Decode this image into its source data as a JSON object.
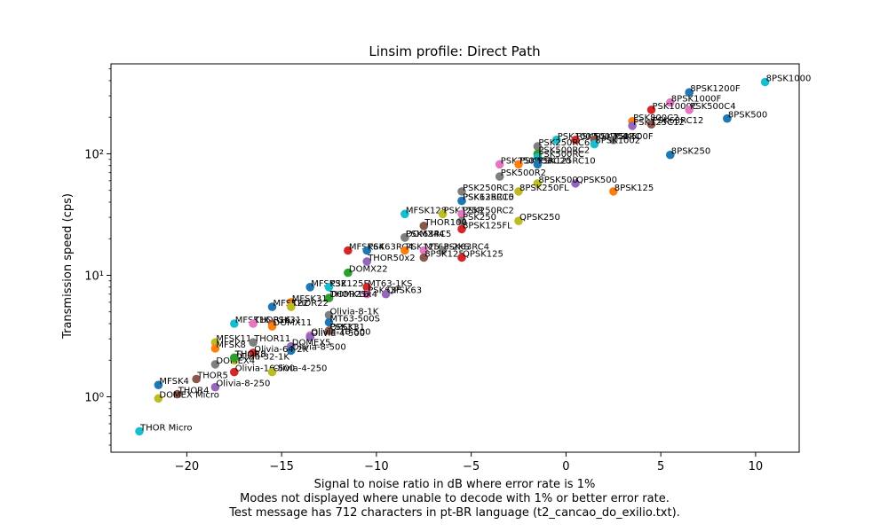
{
  "chart_data": {
    "type": "scatter",
    "title": "Linsim profile: Direct Path",
    "xlabel": "Signal to noise ratio in dB where error rate is 1%",
    "ylabel": "Transmission speed (cps)",
    "caption": [
      "Signal to noise ratio in dB where error rate is 1%",
      "Modes not displayed where unable to decode with 1% or better error rate.",
      "Test message has 712 characters in pt-BR language (t2_cancao_do_exilio.txt)."
    ],
    "xscale": "linear",
    "yscale": "log",
    "xlim": [
      -24,
      12.3
    ],
    "ylim": [
      0.35,
      550
    ],
    "xticks": [
      -20,
      -15,
      -10,
      -5,
      0,
      5,
      10
    ],
    "xtick_labels": [
      "−20",
      "−15",
      "−10",
      "−5",
      "0",
      "5",
      "10"
    ],
    "yticks": [
      1,
      10,
      100
    ],
    "ytick_labels": [
      "10⁰",
      "10¹",
      "10²"
    ],
    "grid": false,
    "points": [
      {
        "label": "8PSK1000",
        "x": 10.5,
        "y": 390,
        "color": "#17becf"
      },
      {
        "label": "8PSK1200F",
        "x": 6.5,
        "y": 320,
        "color": "#1f77b4"
      },
      {
        "label": "8PSK1000F",
        "x": 5.5,
        "y": 265,
        "color": "#e377c2"
      },
      {
        "label": "PSK1000C",
        "x": 4.5,
        "y": 230,
        "color": "#d62728"
      },
      {
        "label": "PSK500C4",
        "x": 6.5,
        "y": 230,
        "color": "#e377c2"
      },
      {
        "label": "8PSK500",
        "x": 8.5,
        "y": 195,
        "color": "#1f77b4"
      },
      {
        "label": "PSK800C2",
        "x": 3.5,
        "y": 185,
        "color": "#ff7f0e"
      },
      {
        "label": "PSK63RC12",
        "x": 4.5,
        "y": 175,
        "color": "#8c564b"
      },
      {
        "label": "PSK125C12",
        "x": 3.5,
        "y": 170,
        "color": "#9467bd"
      },
      {
        "label": "PSK1000",
        "x": -0.5,
        "y": 130,
        "color": "#17becf"
      },
      {
        "label": "PSK500RC4",
        "x": 0.5,
        "y": 130,
        "color": "#d62728"
      },
      {
        "label": "PSK250RC",
        "x": 1.5,
        "y": 130,
        "color": "#8c564b"
      },
      {
        "label": "PSK500F",
        "x": 2.5,
        "y": 130,
        "color": "#7f7f7f"
      },
      {
        "label": "8PSK1002",
        "x": 1.5,
        "y": 120,
        "color": "#17becf"
      },
      {
        "label": "PSK250RC6",
        "x": -1.5,
        "y": 115,
        "color": "#7f7f7f"
      },
      {
        "label": "PSK500RC2",
        "x": -1.5,
        "y": 100,
        "color": "#2ca02c"
      },
      {
        "label": "8PSK250",
        "x": 5.5,
        "y": 98,
        "color": "#1f77b4"
      },
      {
        "label": "PSK500RC",
        "x": -1.5,
        "y": 93,
        "color": "#17becf"
      },
      {
        "label": "PSK250RC3",
        "x": -3.5,
        "y": 82,
        "color": "#e377c2"
      },
      {
        "label": "PSK63RC20",
        "x": -2.5,
        "y": 82,
        "color": "#ff7f0e"
      },
      {
        "label": "PSK125RC10",
        "x": -1.5,
        "y": 82,
        "color": "#1f77b4"
      },
      {
        "label": "PSK500R2",
        "x": -3.5,
        "y": 65,
        "color": "#7f7f7f"
      },
      {
        "label": "QPSK500",
        "x": 0.5,
        "y": 57,
        "color": "#9467bd"
      },
      {
        "label": "8PSK500",
        "x": -1.5,
        "y": 57,
        "color": "#bcbd22"
      },
      {
        "label": "8PSK125",
        "x": 2.5,
        "y": 49,
        "color": "#ff7f0e"
      },
      {
        "label": "PSK250RC3",
        "x": -5.5,
        "y": 49,
        "color": "#7f7f7f"
      },
      {
        "label": "8PSK250FL",
        "x": -2.5,
        "y": 49,
        "color": "#bcbd22"
      },
      {
        "label": "PSK125RC5",
        "x": -5.5,
        "y": 41,
        "color": "#17becf"
      },
      {
        "label": "PSK63RC10",
        "x": -5.5,
        "y": 41,
        "color": "#1f77b4"
      },
      {
        "label": "MFSK128",
        "x": -8.5,
        "y": 32,
        "color": "#17becf"
      },
      {
        "label": "PSK125R",
        "x": -6.5,
        "y": 32,
        "color": "#bcbd22"
      },
      {
        "label": "PSK250RC2",
        "x": -5.5,
        "y": 32,
        "color": "#e377c2"
      },
      {
        "label": "QPSK250",
        "x": -2.5,
        "y": 28,
        "color": "#bcbd22"
      },
      {
        "label": "PSK250",
        "x": -5.5,
        "y": 28,
        "color": "#7f7f7f"
      },
      {
        "label": "THOR100",
        "x": -7.5,
        "y": 25.5,
        "color": "#8c564b"
      },
      {
        "label": "8PSK125FL",
        "x": -5.5,
        "y": 24,
        "color": "#d62728"
      },
      {
        "label": "DOMX44",
        "x": -8.5,
        "y": 20.5,
        "color": "#2ca02c"
      },
      {
        "label": "PSK63RC5",
        "x": -8.5,
        "y": 20.5,
        "color": "#7f7f7f"
      },
      {
        "label": "MFSK64",
        "x": -11.5,
        "y": 16,
        "color": "#d62728"
      },
      {
        "label": "PSK63RC4",
        "x": -10.5,
        "y": 16,
        "color": "#1f77b4"
      },
      {
        "label": "PSK125",
        "x": -8.5,
        "y": 16,
        "color": "#ff7f0e"
      },
      {
        "label": "MT63-2KS",
        "x": -7.5,
        "y": 16,
        "color": "#e377c2"
      },
      {
        "label": "PSK63RC4",
        "x": -6.5,
        "y": 16,
        "color": "#7f7f7f"
      },
      {
        "label": "8PSK125",
        "x": -7.5,
        "y": 14,
        "color": "#8c564b"
      },
      {
        "label": "QPSK125",
        "x": -5.5,
        "y": 14,
        "color": "#d62728"
      },
      {
        "label": "THOR50x2",
        "x": -10.5,
        "y": 13,
        "color": "#9467bd"
      },
      {
        "label": "DOMX22",
        "x": -11.5,
        "y": 10.5,
        "color": "#2ca02c"
      },
      {
        "label": "MFSK32",
        "x": -13.5,
        "y": 8,
        "color": "#1f77b4"
      },
      {
        "label": "PSK125F",
        "x": -12.5,
        "y": 8,
        "color": "#17becf"
      },
      {
        "label": "MT63-1KS",
        "x": -10.5,
        "y": 8,
        "color": "#d62728"
      },
      {
        "label": "PSK63F",
        "x": -10.5,
        "y": 7,
        "color": "#e377c2"
      },
      {
        "label": "QPSK63",
        "x": -9.5,
        "y": 7,
        "color": "#9467bd"
      },
      {
        "label": "THOR25x4",
        "x": -12.5,
        "y": 6.5,
        "color": "#e377c2"
      },
      {
        "label": "MFSK31",
        "x": -14.5,
        "y": 6,
        "color": "#ff7f0e"
      },
      {
        "label": "DOMX16",
        "x": -12.5,
        "y": 6.5,
        "color": "#2ca02c"
      },
      {
        "label": "MFSK22",
        "x": -15.5,
        "y": 5.5,
        "color": "#1f77b4"
      },
      {
        "label": "THOR22",
        "x": -14.5,
        "y": 5.5,
        "color": "#bcbd22"
      },
      {
        "label": "Olivia-8-1K",
        "x": -12.5,
        "y": 4.7,
        "color": "#7f7f7f"
      },
      {
        "label": "MFSK16",
        "x": -17.5,
        "y": 4,
        "color": "#17becf"
      },
      {
        "label": "THOR16",
        "x": -16.5,
        "y": 4,
        "color": "#e377c2"
      },
      {
        "label": "PSK31",
        "x": -15.5,
        "y": 4,
        "color": "#8c564b"
      },
      {
        "label": "DOMX11",
        "x": -15.5,
        "y": 3.8,
        "color": "#ff7f0e"
      },
      {
        "label": "MT63-500S",
        "x": -12.5,
        "y": 4.1,
        "color": "#1f77b4"
      },
      {
        "label": "PSK31",
        "x": -12.5,
        "y": 3.5,
        "color": "#bcbd22"
      },
      {
        "label": "QPSK31",
        "x": -12.5,
        "y": 3.5,
        "color": "#8c564b"
      },
      {
        "label": "Olivia-16-500",
        "x": -13.5,
        "y": 3.2,
        "color": "#e377c2"
      },
      {
        "label": "Olivia-4-500",
        "x": -13.5,
        "y": 3.1,
        "color": "#9467bd"
      },
      {
        "label": "MFSK11",
        "x": -18.5,
        "y": 2.8,
        "color": "#bcbd22"
      },
      {
        "label": "THOR11",
        "x": -16.5,
        "y": 2.8,
        "color": "#7f7f7f"
      },
      {
        "label": "MFSK8",
        "x": -18.5,
        "y": 2.5,
        "color": "#ff7f0e"
      },
      {
        "label": "DOMEX5",
        "x": -14.5,
        "y": 2.6,
        "color": "#9467bd"
      },
      {
        "label": "Olivia-8-500",
        "x": -14.5,
        "y": 2.4,
        "color": "#1f77b4"
      },
      {
        "label": "Olivia-64-2K",
        "x": -16.5,
        "y": 2.3,
        "color": "#d62728"
      },
      {
        "label": "THOR8",
        "x": -17.5,
        "y": 2.1,
        "color": "#17becf"
      },
      {
        "label": "Olivia-32-1K",
        "x": -17.5,
        "y": 2,
        "color": "#bcbd22"
      },
      {
        "label": "DOMEX4",
        "x": -18.5,
        "y": 1.85,
        "color": "#7f7f7f"
      },
      {
        "label": "THOR8",
        "x": -17.5,
        "y": 2.1,
        "color": "#2ca02c"
      },
      {
        "label": "Olivia-16-500",
        "x": -17.5,
        "y": 1.6,
        "color": "#d62728"
      },
      {
        "label": "Olivia-4-250",
        "x": -15.5,
        "y": 1.6,
        "color": "#bcbd22"
      },
      {
        "label": "THOR5",
        "x": -19.5,
        "y": 1.4,
        "color": "#8c564b"
      },
      {
        "label": "MFSK4",
        "x": -21.5,
        "y": 1.25,
        "color": "#1f77b4"
      },
      {
        "label": "Olivia-8-250",
        "x": -18.5,
        "y": 1.2,
        "color": "#9467bd"
      },
      {
        "label": "THOR4",
        "x": -20.5,
        "y": 1.05,
        "color": "#8c564b"
      },
      {
        "label": "DOMEX Micro",
        "x": -21.5,
        "y": 0.97,
        "color": "#bcbd22"
      },
      {
        "label": "THOR Micro",
        "x": -22.5,
        "y": 0.52,
        "color": "#17becf"
      }
    ]
  }
}
